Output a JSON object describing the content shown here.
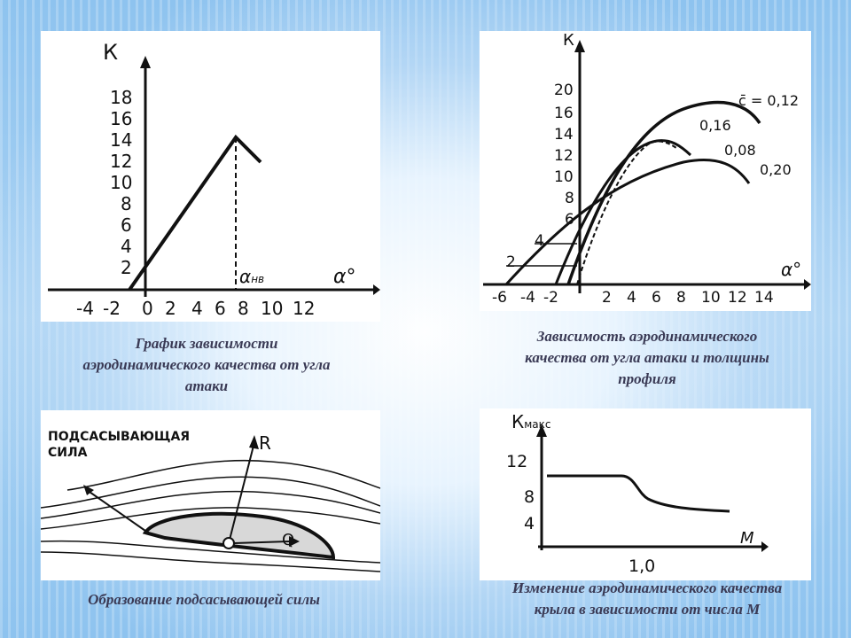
{
  "panels": {
    "top_left": {
      "y_axis_label": "К",
      "x_axis_label": "α°",
      "marker_label": "α",
      "marker_sub": "нв",
      "y_ticks": [
        "2",
        "4",
        "6",
        "8",
        "10",
        "12",
        "14",
        "16",
        "18"
      ],
      "x_ticks": [
        "-4",
        "-2",
        "0",
        "2",
        "4",
        "6",
        "8",
        "10",
        "12"
      ],
      "caption": [
        "График зависимости",
        "аэродинамического качества от угла",
        "атаки"
      ]
    },
    "top_right": {
      "y_axis_label": "К",
      "x_axis_label": "α°",
      "y_ticks": [
        "2",
        "4",
        "6",
        "8",
        "10",
        "12",
        "14",
        "16",
        "20"
      ],
      "x_ticks": [
        "-6",
        "-4",
        "-2",
        "2",
        "4",
        "6",
        "8",
        "10",
        "12",
        "14"
      ],
      "curve_labels": [
        "c̄ = 0,12",
        "0,16",
        "0,08",
        "0,20"
      ],
      "caption": [
        "Зависимость аэродинамического",
        "качества от угла атаки и толщины",
        "профиля"
      ]
    },
    "bottom_left": {
      "label_suction": [
        "ПОДСАСЫВАЮЩАЯ",
        "СИЛА"
      ],
      "label_r": "R",
      "label_q": "Q",
      "caption": [
        "Образование подсасывающей силы"
      ]
    },
    "bottom_right": {
      "y_axis_label": "К",
      "y_axis_sub": "макс",
      "x_axis_label": "М",
      "y_ticks": [
        "4",
        "8",
        "12"
      ],
      "x_tick": "1,0",
      "caption": [
        "Изменение аэродинамического качества",
        "крыла в зависимости от числа М"
      ]
    }
  }
}
